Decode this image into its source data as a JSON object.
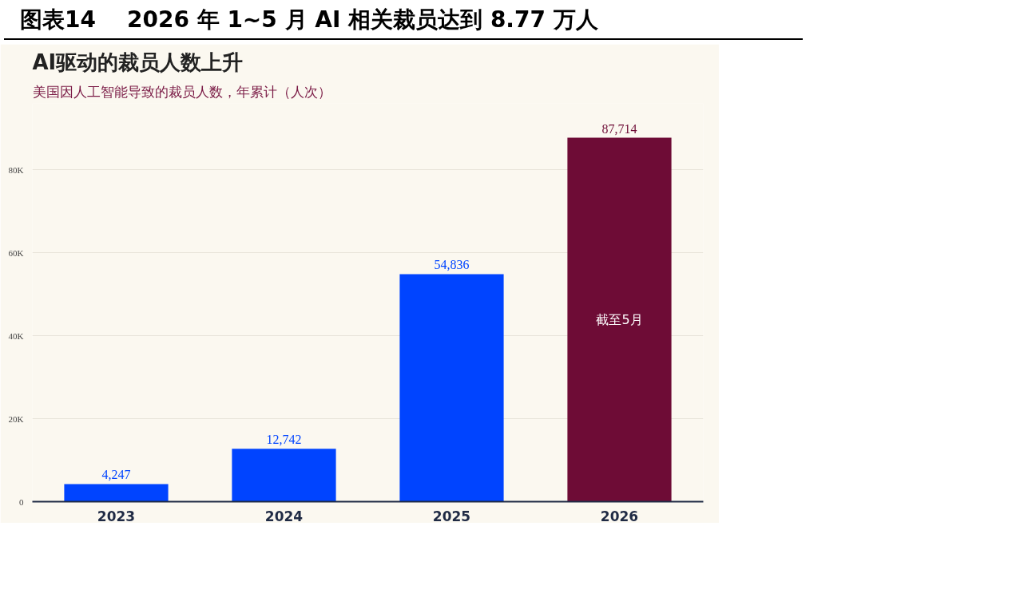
{
  "chart_data": {
    "type": "bar",
    "title": "AI驱动的裁员人数上升",
    "subtitle": "美国因人工智能导致的裁员人数，年累计（人次）",
    "categories": [
      "2023",
      "2024",
      "2025",
      "2026"
    ],
    "values": [
      4247,
      12742,
      54836,
      87714
    ],
    "colors": [
      "#0044ff",
      "#0044ff",
      "#0044ff",
      "#6e0c36"
    ],
    "value_labels": [
      "4,247",
      "12,742",
      "54,836",
      "87,714"
    ],
    "ylim": [
      0,
      96000
    ],
    "yticks": [
      {
        "value": 0,
        "label": "0"
      },
      {
        "value": 20000,
        "label": "20K"
      },
      {
        "value": 40000,
        "label": "40K"
      },
      {
        "value": 60000,
        "label": "60K"
      },
      {
        "value": 80000,
        "label": "80K"
      }
    ],
    "grid": "y",
    "annotations": [
      "图表14    2026 年 1~5 月 AI 相关裁员达到 8.77 万人",
      "截至5月"
    ]
  }
}
